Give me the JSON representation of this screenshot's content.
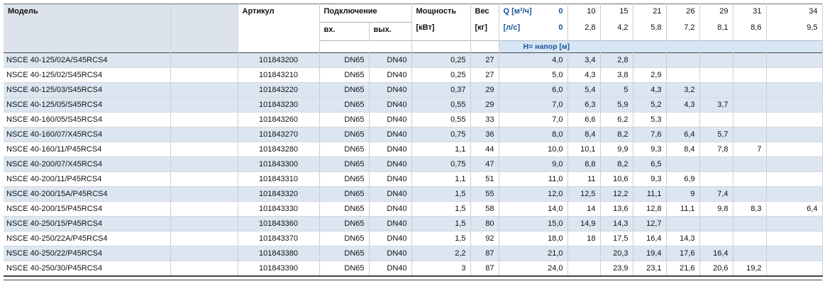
{
  "colors": {
    "accent_blue_text": "#17549b",
    "row_band_blue": "#dce6f1",
    "head_band_blue": "#d7e6f4",
    "header_model_bg": "#dce3eb"
  },
  "table": {
    "headers": {
      "model": "Модель",
      "article": "Артикул",
      "connection": "Подключение",
      "inlet": "вх.",
      "outlet": "вых.",
      "power": "Мощность",
      "power_unit": "[кВт]",
      "weight": "Вес",
      "weight_unit": "[кг]",
      "q_row1_label": "Q [м³/ч]",
      "q_row1_zero": "0",
      "q_row2_label": "[л/с]",
      "q_row2_zero": "0",
      "head_row_label": "H= напор [м]",
      "q_m3h": [
        "10",
        "15",
        "21",
        "26",
        "29",
        "31",
        "34"
      ],
      "q_ls": [
        "2,8",
        "4,2",
        "5,8",
        "7,2",
        "8,1",
        "8,6",
        "9,5"
      ]
    },
    "rows": [
      {
        "model": "NSCE 40-125/02A/S45RCS4",
        "article": "101843200",
        "inlet": "DN65",
        "outlet": "DN40",
        "power": "0,25",
        "weight": "27",
        "shaded": true,
        "h": [
          "4,0",
          "3,4",
          "2,8",
          "",
          "",
          "",
          "",
          ""
        ]
      },
      {
        "model": "NSCE 40-125/02/S45RCS4",
        "article": "101843210",
        "inlet": "DN65",
        "outlet": "DN40",
        "power": "0,25",
        "weight": "27",
        "shaded": false,
        "h": [
          "5,0",
          "4,3",
          "3,8",
          "2,9",
          "",
          "",
          "",
          ""
        ]
      },
      {
        "model": "NSCE 40-125/03/S45RCS4",
        "article": "101843220",
        "inlet": "DN65",
        "outlet": "DN40",
        "power": "0,37",
        "weight": "29",
        "shaded": true,
        "h": [
          "6,0",
          "5,4",
          "5",
          "4,3",
          "3,2",
          "",
          "",
          ""
        ]
      },
      {
        "model": "NSCE 40-125/05/S45RCS4",
        "article": "101843230",
        "inlet": "DN65",
        "outlet": "DN40",
        "power": "0,55",
        "weight": "29",
        "shaded": true,
        "h": [
          "7,0",
          "6,3",
          "5,9",
          "5,2",
          "4,3",
          "3,7",
          "",
          ""
        ]
      },
      {
        "model": "NSCE 40-160/05/S45RCS4",
        "article": "101843260",
        "inlet": "DN65",
        "outlet": "DN40",
        "power": "0,55",
        "weight": "33",
        "shaded": false,
        "h": [
          "7,0",
          "6,6",
          "6,2",
          "5,3",
          "",
          "",
          "",
          ""
        ]
      },
      {
        "model": "NSCE 40-160/07/X45RCS4",
        "article": "101843270",
        "inlet": "DN65",
        "outlet": "DN40",
        "power": "0,75",
        "weight": "36",
        "shaded": true,
        "h": [
          "8,0",
          "8,4",
          "8,2",
          "7,6",
          "6,4",
          "5,7",
          "",
          ""
        ]
      },
      {
        "model": "NSCE 40-160/11/P45RCS4",
        "article": "101843280",
        "inlet": "DN65",
        "outlet": "DN40",
        "power": "1,1",
        "weight": "44",
        "shaded": false,
        "h": [
          "10,0",
          "10,1",
          "9,9",
          "9,3",
          "8,4",
          "7,8",
          "7",
          ""
        ]
      },
      {
        "model": "NSCE 40-200/07/X45RCS4",
        "article": "101843300",
        "inlet": "DN65",
        "outlet": "DN40",
        "power": "0,75",
        "weight": "47",
        "shaded": true,
        "h": [
          "9,0",
          "8,8",
          "8,2",
          "6,5",
          "",
          "",
          "",
          ""
        ]
      },
      {
        "model": "NSCE 40-200/11/P45RCS4",
        "article": "101843310",
        "inlet": "DN65",
        "outlet": "DN40",
        "power": "1,1",
        "weight": "51",
        "shaded": false,
        "h": [
          "11,0",
          "11",
          "10,6",
          "9,3",
          "6,9",
          "",
          "",
          ""
        ]
      },
      {
        "model": "NSCE 40-200/15A/P45RCS4",
        "article": "101843320",
        "inlet": "DN65",
        "outlet": "DN40",
        "power": "1,5",
        "weight": "55",
        "shaded": true,
        "h": [
          "12,0",
          "12,5",
          "12,2",
          "11,1",
          "9",
          "7,4",
          "",
          ""
        ]
      },
      {
        "model": "NSCE 40-200/15/P45RCS4",
        "article": "101843330",
        "inlet": "DN65",
        "outlet": "DN40",
        "power": "1,5",
        "weight": "58",
        "shaded": false,
        "h": [
          "14,0",
          "14",
          "13,6",
          "12,8",
          "11,1",
          "9,8",
          "8,3",
          "6,4"
        ]
      },
      {
        "model": "NSCE 40-250/15/P45RCS4",
        "article": "101843360",
        "inlet": "DN65",
        "outlet": "DN40",
        "power": "1,5",
        "weight": "80",
        "shaded": true,
        "h": [
          "15,0",
          "14,9",
          "14,3",
          "12,7",
          "",
          "",
          "",
          ""
        ]
      },
      {
        "model": "NSCE 40-250/22A/P45RCS4",
        "article": "101843370",
        "inlet": "DN65",
        "outlet": "DN40",
        "power": "1,5",
        "weight": "92",
        "shaded": false,
        "h": [
          "18,0",
          "18",
          "17,5",
          "16,4",
          "14,3",
          "",
          "",
          ""
        ]
      },
      {
        "model": "NSCE 40-250/22/P45RCS4",
        "article": "101843380",
        "inlet": "DN65",
        "outlet": "DN40",
        "power": "2,2",
        "weight": "87",
        "shaded": true,
        "h": [
          "21,0",
          "",
          "20,3",
          "19,4",
          "17,6",
          "16,4",
          "",
          ""
        ]
      },
      {
        "model": "NSCE 40-250/30/P45RCS4",
        "article": "101843390",
        "inlet": "DN65",
        "outlet": "DN40",
        "power": "3",
        "weight": "87",
        "shaded": false,
        "h": [
          "24,0",
          "",
          "23,9",
          "23,1",
          "21,6",
          "20,6",
          "19,2",
          ""
        ]
      }
    ]
  }
}
